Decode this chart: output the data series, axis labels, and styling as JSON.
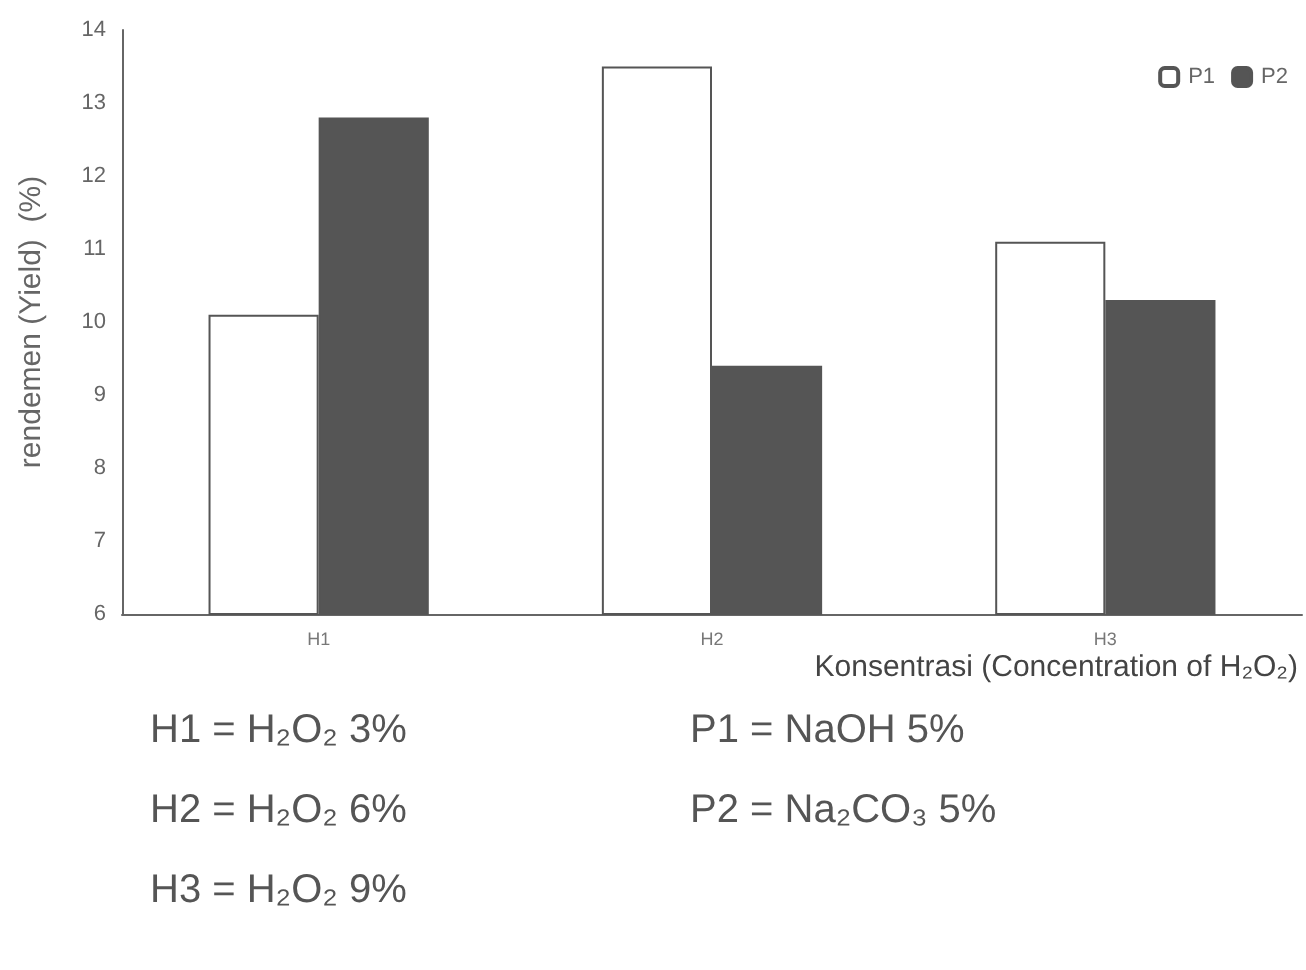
{
  "chart_data": {
    "type": "bar",
    "categories": [
      "H1",
      "H2",
      "H3"
    ],
    "series": [
      {
        "name": "P1",
        "color": "#ffffff",
        "values": [
          10.1,
          13.5,
          11.1
        ]
      },
      {
        "name": "P2",
        "color": "#555555",
        "values": [
          12.8,
          9.4,
          10.3
        ]
      }
    ],
    "xlabel": "Konsentrasi (Concentration of H₂O₂)",
    "ylabel": "rendemen (Yield)  (%)",
    "ylim": [
      6,
      14
    ],
    "yticks": [
      6,
      7,
      8,
      9,
      10,
      11,
      12,
      13,
      14
    ],
    "grid": false,
    "legend": "top right",
    "annotations": [
      "H1 = H₂O₂ 3%",
      "H2 = H₂O₂ 6%",
      "H3 = H₂O₂ 9%",
      "P1 = NaOH 5%",
      "P2 = Na₂CO₃ 5%"
    ]
  }
}
